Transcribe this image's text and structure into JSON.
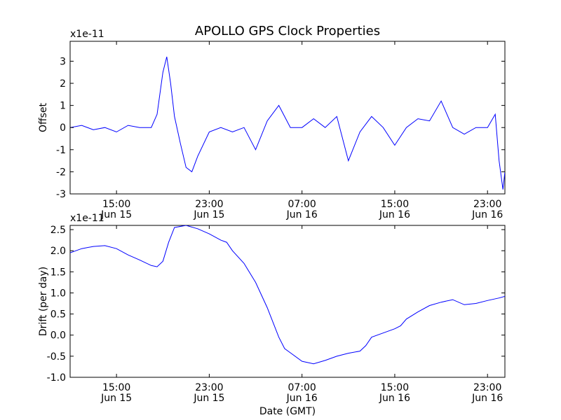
{
  "title": "APOLLO GPS Clock Properties",
  "chart_data": [
    {
      "type": "line",
      "ylabel": "Offset",
      "multiplier": "x1e-11",
      "xlabel": "",
      "ylim": [
        -3,
        3.9
      ],
      "yticks": [
        -3,
        -2,
        -1,
        0,
        1,
        2,
        3
      ],
      "ytick_labels": [
        "-3",
        "-2",
        "-1",
        "0",
        "1",
        "2",
        "3"
      ],
      "xlim": [
        "2011-06-15 11:00",
        "2011-06-17 00:30"
      ],
      "xticks": [
        "2011-06-15 15:00",
        "2011-06-15 23:00",
        "2011-06-16 07:00",
        "2011-06-16 15:00",
        "2011-06-16 23:00"
      ],
      "xtick_labels": [
        {
          "time": "15:00",
          "date": "Jun 15"
        },
        {
          "time": "23:00",
          "date": "Jun 15"
        },
        {
          "time": "07:00",
          "date": "Jun 16"
        },
        {
          "time": "15:00",
          "date": "Jun 16"
        },
        {
          "time": "23:00",
          "date": "Jun 16"
        }
      ],
      "grid": false,
      "series": [
        {
          "color": "#0000ff",
          "points": [
            [
              "2011-06-15 11:00",
              0.0
            ],
            [
              "2011-06-15 12:00",
              0.1
            ],
            [
              "2011-06-15 13:00",
              -0.1
            ],
            [
              "2011-06-15 14:00",
              0.0
            ],
            [
              "2011-06-15 15:00",
              -0.2
            ],
            [
              "2011-06-15 16:00",
              0.1
            ],
            [
              "2011-06-15 17:00",
              0.0
            ],
            [
              "2011-06-15 18:00",
              0.0
            ],
            [
              "2011-06-15 18:30",
              0.6
            ],
            [
              "2011-06-15 19:00",
              2.5
            ],
            [
              "2011-06-15 19:20",
              3.2
            ],
            [
              "2011-06-15 19:40",
              2.0
            ],
            [
              "2011-06-15 20:00",
              0.5
            ],
            [
              "2011-06-15 20:30",
              -0.7
            ],
            [
              "2011-06-15 21:00",
              -1.8
            ],
            [
              "2011-06-15 21:30",
              -2.0
            ],
            [
              "2011-06-15 22:00",
              -1.3
            ],
            [
              "2011-06-15 23:00",
              -0.2
            ],
            [
              "2011-06-16 00:00",
              0.0
            ],
            [
              "2011-06-16 01:00",
              -0.2
            ],
            [
              "2011-06-16 02:00",
              0.0
            ],
            [
              "2011-06-16 03:00",
              -1.0
            ],
            [
              "2011-06-16 04:00",
              0.3
            ],
            [
              "2011-06-16 05:00",
              1.0
            ],
            [
              "2011-06-16 06:00",
              0.0
            ],
            [
              "2011-06-16 07:00",
              0.0
            ],
            [
              "2011-06-16 08:00",
              0.4
            ],
            [
              "2011-06-16 09:00",
              0.0
            ],
            [
              "2011-06-16 10:00",
              0.5
            ],
            [
              "2011-06-16 11:00",
              -1.5
            ],
            [
              "2011-06-16 12:00",
              -0.2
            ],
            [
              "2011-06-16 13:00",
              0.5
            ],
            [
              "2011-06-16 14:00",
              0.0
            ],
            [
              "2011-06-16 15:00",
              -0.8
            ],
            [
              "2011-06-16 16:00",
              0.0
            ],
            [
              "2011-06-16 17:00",
              0.4
            ],
            [
              "2011-06-16 18:00",
              0.3
            ],
            [
              "2011-06-16 19:00",
              1.2
            ],
            [
              "2011-06-16 20:00",
              0.0
            ],
            [
              "2011-06-16 21:00",
              -0.3
            ],
            [
              "2011-06-16 22:00",
              0.0
            ],
            [
              "2011-06-16 23:00",
              0.0
            ],
            [
              "2011-06-16 23:40",
              0.6
            ],
            [
              "2011-06-17 00:00",
              -1.5
            ],
            [
              "2011-06-17 00:20",
              -2.8
            ],
            [
              "2011-06-17 00:30",
              -2.0
            ]
          ]
        }
      ]
    },
    {
      "type": "line",
      "ylabel": "Drift (per day)",
      "multiplier": "x1e-11",
      "xlabel": "Date (GMT)",
      "ylim": [
        -1.0,
        2.6
      ],
      "yticks": [
        -1.0,
        -0.5,
        0.0,
        0.5,
        1.0,
        1.5,
        2.0,
        2.5
      ],
      "ytick_labels": [
        "-1.0",
        "-0.5",
        "0.0",
        "0.5",
        "1.0",
        "1.5",
        "2.0",
        "2.5"
      ],
      "xlim": [
        "2011-06-15 11:00",
        "2011-06-17 00:30"
      ],
      "xticks": [
        "2011-06-15 15:00",
        "2011-06-15 23:00",
        "2011-06-16 07:00",
        "2011-06-16 15:00",
        "2011-06-16 23:00"
      ],
      "xtick_labels": [
        {
          "time": "15:00",
          "date": "Jun 15"
        },
        {
          "time": "23:00",
          "date": "Jun 15"
        },
        {
          "time": "07:00",
          "date": "Jun 16"
        },
        {
          "time": "15:00",
          "date": "Jun 16"
        },
        {
          "time": "23:00",
          "date": "Jun 16"
        }
      ],
      "grid": false,
      "series": [
        {
          "color": "#0000ff",
          "points": [
            [
              "2011-06-15 11:00",
              1.95
            ],
            [
              "2011-06-15 12:00",
              2.05
            ],
            [
              "2011-06-15 13:00",
              2.1
            ],
            [
              "2011-06-15 14:00",
              2.12
            ],
            [
              "2011-06-15 15:00",
              2.05
            ],
            [
              "2011-06-15 16:00",
              1.9
            ],
            [
              "2011-06-15 17:00",
              1.78
            ],
            [
              "2011-06-15 18:00",
              1.65
            ],
            [
              "2011-06-15 18:30",
              1.62
            ],
            [
              "2011-06-15 19:00",
              1.75
            ],
            [
              "2011-06-15 19:30",
              2.2
            ],
            [
              "2011-06-15 20:00",
              2.55
            ],
            [
              "2011-06-15 21:00",
              2.6
            ],
            [
              "2011-06-15 22:00",
              2.52
            ],
            [
              "2011-06-15 23:00",
              2.4
            ],
            [
              "2011-06-16 00:00",
              2.25
            ],
            [
              "2011-06-16 00:30",
              2.2
            ],
            [
              "2011-06-16 01:00",
              2.0
            ],
            [
              "2011-06-16 02:00",
              1.7
            ],
            [
              "2011-06-16 03:00",
              1.25
            ],
            [
              "2011-06-16 04:00",
              0.65
            ],
            [
              "2011-06-16 05:00",
              -0.05
            ],
            [
              "2011-06-16 05:30",
              -0.32
            ],
            [
              "2011-06-16 06:00",
              -0.42
            ],
            [
              "2011-06-16 07:00",
              -0.62
            ],
            [
              "2011-06-16 08:00",
              -0.68
            ],
            [
              "2011-06-16 09:00",
              -0.6
            ],
            [
              "2011-06-16 10:00",
              -0.5
            ],
            [
              "2011-06-16 11:00",
              -0.43
            ],
            [
              "2011-06-16 12:00",
              -0.38
            ],
            [
              "2011-06-16 12:30",
              -0.25
            ],
            [
              "2011-06-16 13:00",
              -0.05
            ],
            [
              "2011-06-16 14:00",
              0.05
            ],
            [
              "2011-06-16 15:00",
              0.15
            ],
            [
              "2011-06-16 15:30",
              0.22
            ],
            [
              "2011-06-16 16:00",
              0.38
            ],
            [
              "2011-06-16 17:00",
              0.55
            ],
            [
              "2011-06-16 18:00",
              0.7
            ],
            [
              "2011-06-16 19:00",
              0.78
            ],
            [
              "2011-06-16 20:00",
              0.84
            ],
            [
              "2011-06-16 21:00",
              0.72
            ],
            [
              "2011-06-16 22:00",
              0.75
            ],
            [
              "2011-06-16 23:00",
              0.82
            ],
            [
              "2011-06-17 00:00",
              0.88
            ],
            [
              "2011-06-17 00:30",
              0.92
            ]
          ]
        }
      ]
    }
  ]
}
